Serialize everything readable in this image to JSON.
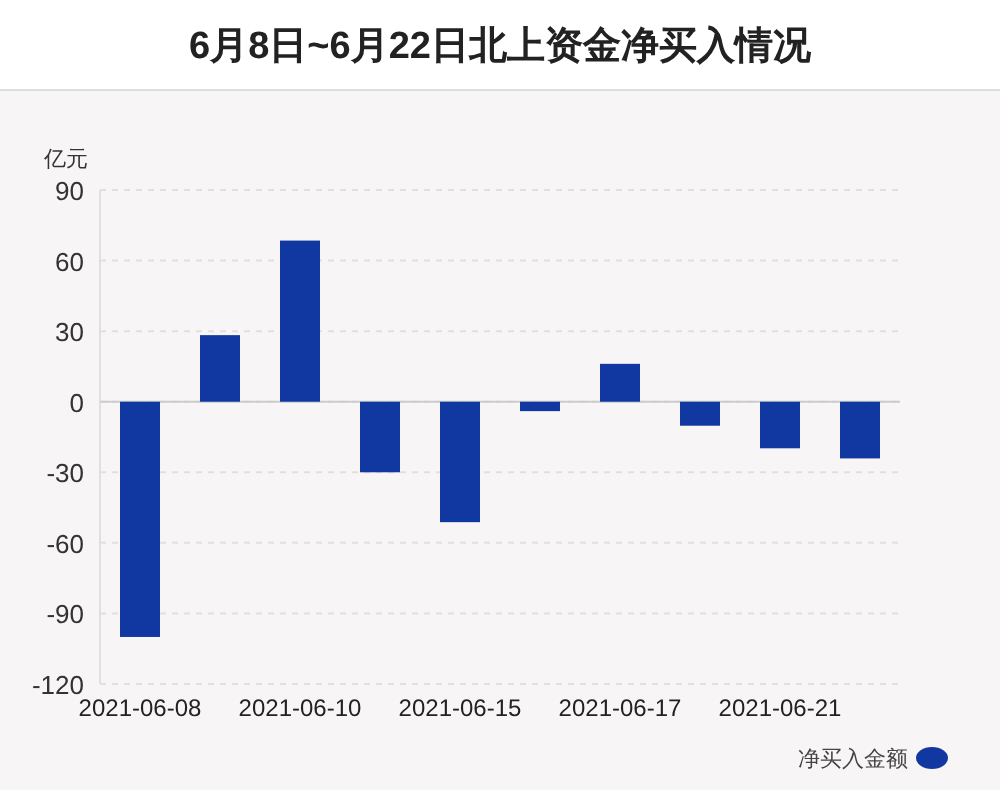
{
  "chart_data": {
    "type": "bar",
    "title": "6月8日~6月22日北上资金净买入情况",
    "ylabel": "亿元",
    "categories": [
      "2021-06-08",
      null,
      "2021-06-10",
      null,
      "2021-06-15",
      null,
      "2021-06-17",
      null,
      "2021-06-21",
      null
    ],
    "series": [
      {
        "name": "净买入金额",
        "color": "#1038a0",
        "values": [
          -100,
          28.3,
          68.5,
          -30,
          -51.2,
          -4,
          16.1,
          -10.2,
          -19.8,
          -24.1
        ]
      }
    ],
    "ylim": [
      -120,
      90
    ],
    "yticks": [
      -120,
      -90,
      -60,
      -30,
      0,
      30,
      60,
      90
    ],
    "grid": "y",
    "legend": "bottom right"
  }
}
